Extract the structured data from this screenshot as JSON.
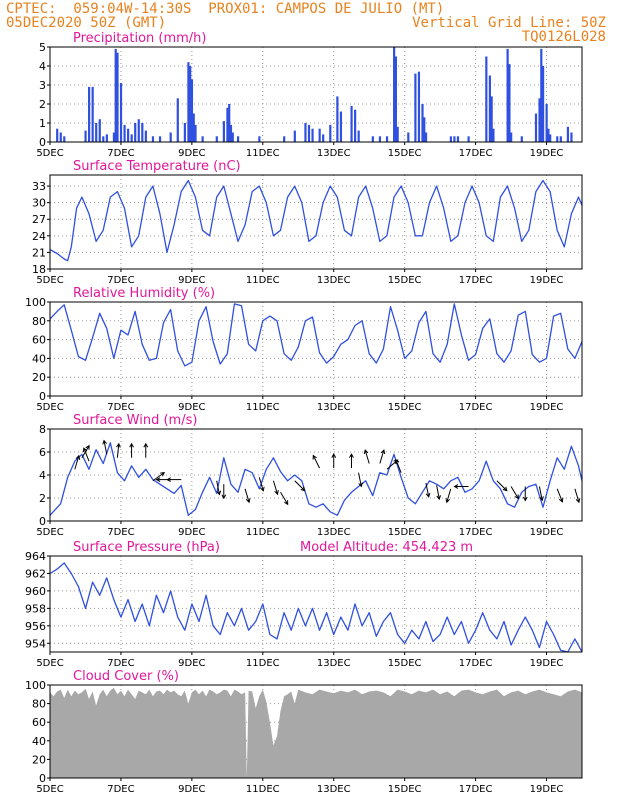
{
  "header": {
    "line1_left": "CPTEC:  059:04W-14:30S  PROX01: CAMPOS DE JULIO (MT)",
    "line2_left": "05DEC2020 50Z (GMT)",
    "line2_right": "Vertical Grid Line: 50Z",
    "line3_right": "TQ0126L028"
  },
  "colors": {
    "header": "#e8821e",
    "title": "#e0189a",
    "line": "#3050e0",
    "cloud": "#a8a8a8",
    "arrow": "#000000"
  },
  "x_axis": {
    "ticks": [
      "5DEC",
      "7DEC",
      "9DEC",
      "11DEC",
      "13DEC",
      "15DEC",
      "17DEC",
      "19DEC"
    ],
    "tick_days": [
      5,
      7,
      9,
      11,
      13,
      15,
      17,
      19
    ],
    "range_days": [
      5,
      20
    ]
  },
  "chart_data": [
    {
      "id": "precip",
      "type": "bar",
      "title": "Precipitation (mm/h)",
      "ylim": [
        0,
        5
      ],
      "yticks": [
        "0",
        "1",
        "2",
        "3",
        "4",
        "5"
      ],
      "ytick_values": [
        0,
        1,
        2,
        3,
        4,
        5
      ],
      "x_days": [
        5.2,
        5.3,
        5.4,
        6.0,
        6.1,
        6.2,
        6.3,
        6.4,
        6.5,
        6.6,
        6.8,
        6.85,
        6.9,
        7.0,
        7.1,
        7.2,
        7.3,
        7.4,
        7.5,
        7.6,
        7.7,
        7.9,
        8.1,
        8.4,
        8.6,
        8.8,
        8.9,
        8.95,
        9.0,
        9.05,
        9.1,
        9.3,
        9.7,
        9.9,
        10.0,
        10.05,
        10.1,
        10.15,
        10.3,
        10.9,
        11.6,
        11.9,
        12.2,
        12.3,
        12.4,
        12.6,
        12.7,
        12.9,
        13.1,
        13.2,
        13.5,
        13.6,
        13.7,
        14.1,
        14.3,
        14.5,
        14.7,
        14.75,
        14.8,
        15.1,
        15.3,
        15.4,
        15.5,
        15.55,
        15.6,
        16.3,
        16.4,
        16.5,
        16.8,
        17.3,
        17.4,
        17.45,
        17.5,
        17.9,
        17.95,
        18.0,
        18.3,
        18.7,
        18.8,
        18.85,
        18.9,
        19.0,
        19.05,
        19.1,
        19.3,
        19.4,
        19.6,
        19.7
      ],
      "values": [
        0.7,
        0.5,
        0.3,
        0.6,
        2.9,
        2.9,
        1.0,
        1.2,
        0.3,
        0.4,
        0.5,
        4.9,
        4.7,
        3.1,
        0.9,
        0.7,
        0.4,
        1.0,
        1.2,
        1.0,
        0.6,
        0.3,
        0.3,
        0.5,
        2.3,
        1.0,
        4.2,
        4.0,
        3.3,
        1.5,
        0.9,
        0.3,
        0.3,
        1.1,
        1.8,
        2.0,
        0.9,
        0.5,
        0.3,
        0.3,
        0.3,
        0.6,
        1.0,
        0.9,
        0.7,
        0.7,
        0.4,
        0.9,
        2.4,
        1.6,
        1.9,
        1.7,
        0.6,
        0.3,
        0.3,
        0.3,
        5.0,
        4.5,
        0.8,
        0.5,
        3.6,
        3.7,
        2.0,
        1.3,
        0.5,
        0.3,
        0.3,
        0.3,
        0.3,
        4.5,
        3.5,
        2.4,
        0.7,
        4.9,
        4.1,
        0.5,
        0.3,
        1.5,
        2.3,
        4.9,
        4.0,
        2.0,
        0.7,
        0.4,
        0.3,
        0.3,
        0.8,
        0.5
      ]
    },
    {
      "id": "temp",
      "type": "line",
      "title": "Surface Temperature (nC)",
      "ylim": [
        18,
        35
      ],
      "yticks": [
        "18",
        "21",
        "24",
        "27",
        "30",
        "33"
      ],
      "ytick_values": [
        18,
        21,
        24,
        27,
        30,
        33
      ],
      "x_days": [
        5.0,
        5.2,
        5.4,
        5.5,
        5.6,
        5.75,
        5.9,
        6.1,
        6.3,
        6.5,
        6.7,
        6.9,
        7.1,
        7.3,
        7.5,
        7.7,
        7.9,
        8.1,
        8.3,
        8.5,
        8.7,
        8.9,
        9.1,
        9.3,
        9.5,
        9.7,
        9.9,
        10.1,
        10.3,
        10.5,
        10.7,
        10.9,
        11.1,
        11.3,
        11.5,
        11.7,
        11.9,
        12.1,
        12.3,
        12.5,
        12.7,
        12.9,
        13.1,
        13.3,
        13.5,
        13.7,
        13.9,
        14.1,
        14.3,
        14.5,
        14.7,
        14.9,
        15.1,
        15.3,
        15.5,
        15.7,
        15.9,
        16.1,
        16.3,
        16.5,
        16.7,
        16.9,
        17.1,
        17.3,
        17.5,
        17.7,
        17.9,
        18.1,
        18.3,
        18.5,
        18.7,
        18.9,
        19.1,
        19.3,
        19.5,
        19.7,
        19.9,
        20.0
      ],
      "values": [
        21.5,
        20.8,
        19.8,
        19.5,
        22,
        29,
        31,
        28,
        23,
        25,
        31,
        32,
        29,
        22,
        24,
        31,
        33,
        28,
        21,
        26,
        32,
        34,
        31,
        25,
        24,
        31,
        33,
        28,
        23,
        26,
        32,
        33,
        30,
        24,
        25,
        31,
        33,
        30,
        23,
        24,
        30,
        33,
        31,
        25,
        24,
        31,
        33,
        29,
        23,
        24,
        31,
        33,
        30,
        24,
        24,
        30,
        33,
        29,
        23,
        24,
        30,
        33,
        30,
        24,
        23,
        31,
        33,
        29,
        23,
        25,
        32,
        34,
        32,
        25,
        22,
        28,
        31,
        29.5
      ]
    },
    {
      "id": "rh",
      "type": "line",
      "title": "Relative Humidity (%)",
      "ylim": [
        0,
        100
      ],
      "yticks": [
        "0",
        "20",
        "40",
        "60",
        "80",
        "100"
      ],
      "ytick_values": [
        0,
        20,
        40,
        60,
        80,
        100
      ],
      "x_days": [
        5.0,
        5.2,
        5.4,
        5.6,
        5.8,
        6.0,
        6.2,
        6.4,
        6.6,
        6.8,
        7.0,
        7.2,
        7.4,
        7.6,
        7.8,
        8.0,
        8.2,
        8.4,
        8.6,
        8.8,
        9.0,
        9.2,
        9.4,
        9.6,
        9.8,
        10.0,
        10.2,
        10.4,
        10.6,
        10.8,
        11.0,
        11.2,
        11.4,
        11.6,
        11.8,
        12.0,
        12.2,
        12.4,
        12.6,
        12.8,
        13.0,
        13.2,
        13.4,
        13.6,
        13.8,
        14.0,
        14.2,
        14.4,
        14.6,
        14.8,
        15.0,
        15.2,
        15.4,
        15.6,
        15.8,
        16.0,
        16.2,
        16.4,
        16.6,
        16.8,
        17.0,
        17.2,
        17.4,
        17.6,
        17.8,
        18.0,
        18.2,
        18.4,
        18.6,
        18.8,
        19.0,
        19.2,
        19.4,
        19.6,
        19.8,
        20.0
      ],
      "values": [
        82,
        90,
        97,
        70,
        42,
        38,
        62,
        88,
        72,
        40,
        70,
        65,
        90,
        55,
        38,
        40,
        78,
        92,
        48,
        32,
        36,
        80,
        95,
        58,
        34,
        45,
        98,
        96,
        55,
        48,
        80,
        85,
        80,
        45,
        38,
        52,
        80,
        84,
        46,
        35,
        42,
        55,
        60,
        75,
        80,
        45,
        35,
        50,
        95,
        70,
        40,
        48,
        78,
        90,
        45,
        36,
        55,
        98,
        65,
        38,
        44,
        72,
        82,
        45,
        36,
        48,
        86,
        90,
        44,
        36,
        40,
        85,
        88,
        50,
        40,
        58
      ]
    },
    {
      "id": "wind",
      "type": "line",
      "title": "Surface Wind (m/s)",
      "ylim": [
        0,
        8
      ],
      "yticks": [
        "0",
        "2",
        "4",
        "6",
        "8"
      ],
      "ytick_values": [
        0,
        2,
        4,
        6,
        8
      ],
      "x_days": [
        5.0,
        5.3,
        5.5,
        5.7,
        5.9,
        6.1,
        6.3,
        6.5,
        6.7,
        6.9,
        7.1,
        7.3,
        7.5,
        7.7,
        7.9,
        8.1,
        8.3,
        8.5,
        8.7,
        8.9,
        9.1,
        9.3,
        9.5,
        9.7,
        9.9,
        10.1,
        10.3,
        10.5,
        10.7,
        10.9,
        11.1,
        11.3,
        11.5,
        11.7,
        11.9,
        12.1,
        12.3,
        12.5,
        12.7,
        12.9,
        13.1,
        13.3,
        13.5,
        13.7,
        13.9,
        14.1,
        14.3,
        14.5,
        14.7,
        14.9,
        15.1,
        15.3,
        15.5,
        15.7,
        15.9,
        16.1,
        16.3,
        16.5,
        16.7,
        16.9,
        17.1,
        17.3,
        17.5,
        17.7,
        17.9,
        18.1,
        18.3,
        18.5,
        18.7,
        18.9,
        19.1,
        19.3,
        19.5,
        19.7,
        19.9,
        20.0
      ],
      "values": [
        0.5,
        1.5,
        3.8,
        5.2,
        5.8,
        4.5,
        6.2,
        5.0,
        6.8,
        4.2,
        3.5,
        4.8,
        3.8,
        4.5,
        3.6,
        3.2,
        2.8,
        2.4,
        3.1,
        0.5,
        1.0,
        2.5,
        3.8,
        2.4,
        5.5,
        3.2,
        2.5,
        4.5,
        4.2,
        2.8,
        4.5,
        5.5,
        4.3,
        3.5,
        4.0,
        3.5,
        1.5,
        1.2,
        1.5,
        0.8,
        0.5,
        1.8,
        2.5,
        3.0,
        3.5,
        2.2,
        4.2,
        4.0,
        5.8,
        3.8,
        2.0,
        1.5,
        2.5,
        3.5,
        3.2,
        2.8,
        3.5,
        3.8,
        2.5,
        2.8,
        3.5,
        5.2,
        3.5,
        2.8,
        1.5,
        1.2,
        2.5,
        3.0,
        3.2,
        1.2,
        3.5,
        5.5,
        4.5,
        6.5,
        4.8,
        3.5
      ]
    },
    {
      "id": "pressure",
      "type": "line",
      "title": "Surface Pressure (hPa)",
      "annotation": "Model Altitude: 454.423 m",
      "ylim": [
        953,
        964
      ],
      "yticks": [
        "954",
        "956",
        "958",
        "960",
        "962",
        "964"
      ],
      "ytick_values": [
        954,
        956,
        958,
        960,
        962,
        964
      ],
      "x_days": [
        5.0,
        5.2,
        5.4,
        5.6,
        5.8,
        6.0,
        6.2,
        6.4,
        6.6,
        6.8,
        7.0,
        7.2,
        7.4,
        7.6,
        7.8,
        8.0,
        8.2,
        8.4,
        8.6,
        8.8,
        9.0,
        9.2,
        9.4,
        9.6,
        9.8,
        10.0,
        10.2,
        10.4,
        10.6,
        10.8,
        11.0,
        11.2,
        11.4,
        11.6,
        11.8,
        12.0,
        12.2,
        12.4,
        12.6,
        12.8,
        13.0,
        13.2,
        13.4,
        13.6,
        13.8,
        14.0,
        14.2,
        14.4,
        14.6,
        14.8,
        15.0,
        15.2,
        15.4,
        15.6,
        15.8,
        16.0,
        16.2,
        16.4,
        16.6,
        16.8,
        17.0,
        17.2,
        17.4,
        17.6,
        17.8,
        18.0,
        18.2,
        18.4,
        18.6,
        18.8,
        19.0,
        19.2,
        19.4,
        19.6,
        19.8,
        20.0
      ],
      "values": [
        962.0,
        962.5,
        963.2,
        962.0,
        960.5,
        958.0,
        961.0,
        959.5,
        961.5,
        959.0,
        957.0,
        959.0,
        956.5,
        958.5,
        956.0,
        959.5,
        957.5,
        960.0,
        957.0,
        955.5,
        958.5,
        956.5,
        959.5,
        956.0,
        955.0,
        957.5,
        956.0,
        958.0,
        955.5,
        956.5,
        958.5,
        955.0,
        954.5,
        957.5,
        955.5,
        958.0,
        956.0,
        958.0,
        955.5,
        957.5,
        955.0,
        957.0,
        955.5,
        958.5,
        956.0,
        957.5,
        954.8,
        956.5,
        957.5,
        955.0,
        954.0,
        955.5,
        954.5,
        956.5,
        954.2,
        955.0,
        957.0,
        955.0,
        956.5,
        954.0,
        955.5,
        957.5,
        955.5,
        954.5,
        956.5,
        953.8,
        955.5,
        957.0,
        955.5,
        953.5,
        956.5,
        955.0,
        953.2,
        953.0,
        954.5,
        953.0
      ]
    },
    {
      "id": "cloud",
      "type": "area",
      "title": "Cloud Cover (%)",
      "ylim": [
        0,
        100
      ],
      "yticks": [
        "0",
        "20",
        "40",
        "60",
        "80",
        "100"
      ],
      "ytick_values": [
        0,
        20,
        40,
        60,
        80,
        100
      ],
      "x_days": [
        5.0,
        5.1,
        5.2,
        5.3,
        5.4,
        5.5,
        5.6,
        5.7,
        5.8,
        5.9,
        6.0,
        6.1,
        6.2,
        6.3,
        6.4,
        6.5,
        6.6,
        6.7,
        6.8,
        6.9,
        7.0,
        7.1,
        7.2,
        7.3,
        7.4,
        7.5,
        7.6,
        7.7,
        7.8,
        7.9,
        8.0,
        8.1,
        8.2,
        8.3,
        8.4,
        8.5,
        8.6,
        8.7,
        8.8,
        8.9,
        9.0,
        9.1,
        9.2,
        9.3,
        9.4,
        9.5,
        9.6,
        9.7,
        9.8,
        9.9,
        10.0,
        10.1,
        10.2,
        10.3,
        10.4,
        10.5,
        10.55,
        10.6,
        10.7,
        10.8,
        10.9,
        11.0,
        11.1,
        11.2,
        11.3,
        11.4,
        11.5,
        11.6,
        11.7,
        11.8,
        11.9,
        12.0,
        12.2,
        12.4,
        12.6,
        12.8,
        13.0,
        13.2,
        13.4,
        13.6,
        13.8,
        14.0,
        14.2,
        14.4,
        14.6,
        14.8,
        15.0,
        15.2,
        15.4,
        15.6,
        15.8,
        16.0,
        16.2,
        16.4,
        16.6,
        16.8,
        17.0,
        17.2,
        17.4,
        17.6,
        17.8,
        18.0,
        18.2,
        18.4,
        18.6,
        18.8,
        19.0,
        19.2,
        19.4,
        19.6,
        19.8,
        20.0
      ],
      "values": [
        92,
        88,
        93,
        95,
        86,
        95,
        88,
        94,
        90,
        92,
        96,
        85,
        93,
        78,
        90,
        95,
        88,
        94,
        97,
        90,
        94,
        88,
        95,
        90,
        85,
        94,
        92,
        90,
        95,
        88,
        93,
        94,
        90,
        95,
        92,
        94,
        90,
        88,
        94,
        80,
        92,
        95,
        90,
        94,
        88,
        95,
        93,
        90,
        92,
        95,
        94,
        88,
        95,
        93,
        90,
        92,
        0,
        94,
        93,
        75,
        88,
        95,
        82,
        60,
        35,
        45,
        72,
        88,
        90,
        93,
        80,
        95,
        92,
        90,
        95,
        93,
        91,
        94,
        92,
        95,
        90,
        93,
        94,
        92,
        88,
        95,
        93,
        90,
        94,
        92,
        95,
        90,
        93,
        88,
        94,
        95,
        92,
        90,
        93,
        95,
        88,
        92,
        94,
        90,
        93,
        95,
        92,
        90,
        88,
        93,
        95,
        92
      ]
    }
  ]
}
